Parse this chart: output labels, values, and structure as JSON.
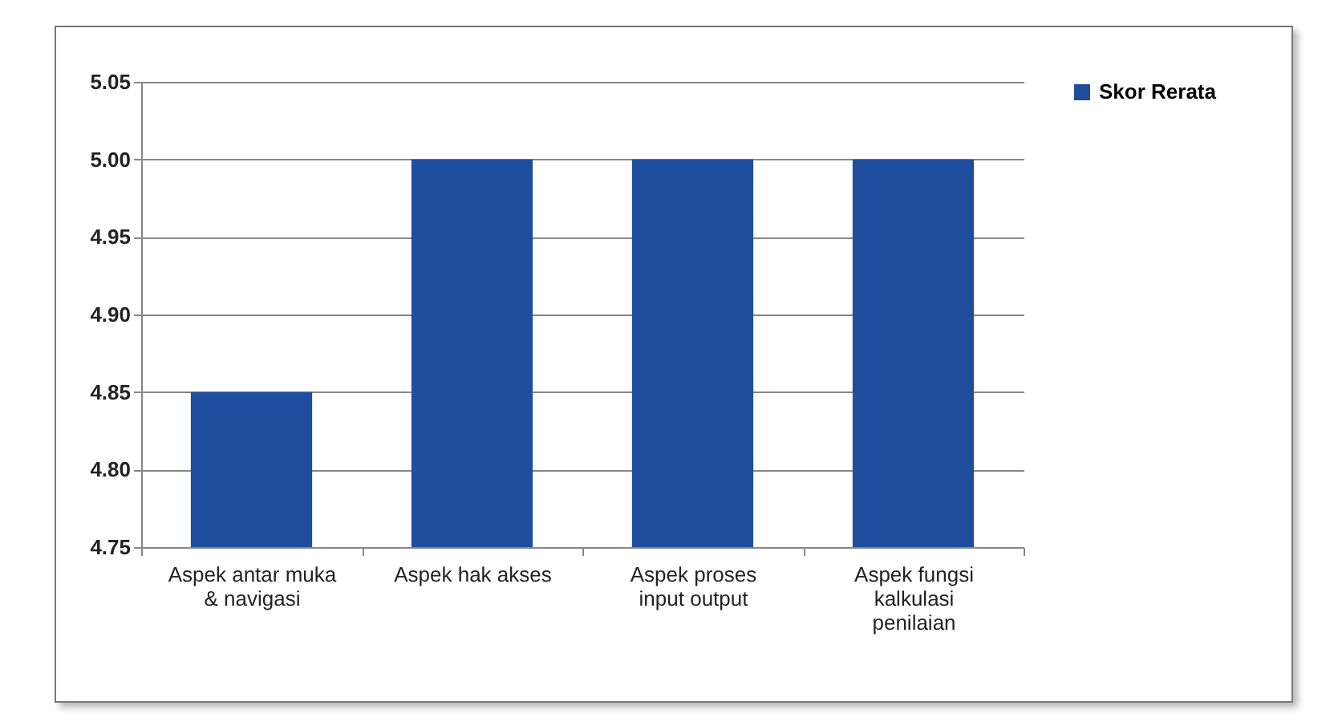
{
  "chart_data": {
    "type": "bar",
    "categories": [
      "Aspek antar muka & navigasi",
      "Aspek hak akses",
      "Aspek proses input output",
      "Aspek fungsi kalkulasi penilaian"
    ],
    "series": [
      {
        "name": "Skor Rerata",
        "color": "#1f4e9e",
        "values": [
          4.85,
          5.0,
          5.0,
          5.0
        ]
      }
    ],
    "ylim": [
      4.75,
      5.05
    ],
    "yticks": [
      {
        "value": 4.75,
        "label": "4.75"
      },
      {
        "value": 4.8,
        "label": "4.80"
      },
      {
        "value": 4.85,
        "label": "4.85"
      },
      {
        "value": 4.9,
        "label": "4.90"
      },
      {
        "value": 4.95,
        "label": "4.95"
      },
      {
        "value": 5.0,
        "label": "5.00"
      },
      {
        "value": 5.05,
        "label": "5.05"
      }
    ],
    "grid": "y",
    "legend": "right"
  }
}
